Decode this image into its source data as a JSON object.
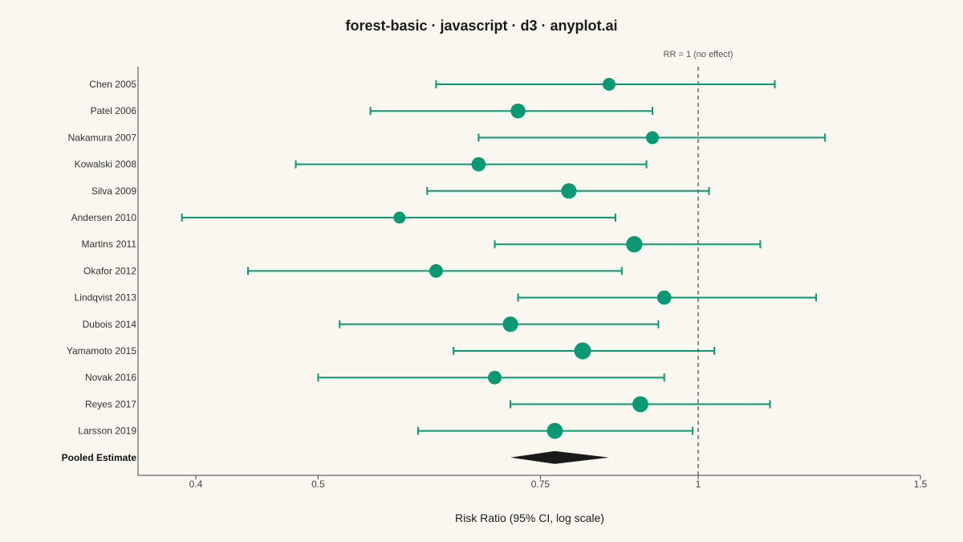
{
  "chart_data": {
    "type": "forest",
    "title": "forest-basic · javascript · d3 · anyplot.ai",
    "xlabel": "Risk Ratio (95% CI, log scale)",
    "x_scale": "log",
    "xlim": [
      0.36,
      1.5
    ],
    "ticks": [
      {
        "value": 0.4,
        "label": "0.4"
      },
      {
        "value": 0.5,
        "label": "0.5"
      },
      {
        "value": 0.75,
        "label": "0.75"
      },
      {
        "value": 1,
        "label": "1"
      },
      {
        "value": 1.5,
        "label": "1.5"
      }
    ],
    "reference": {
      "value": 1,
      "label": "RR = 1 (no effect)"
    },
    "studies": [
      {
        "name": "Chen 2005",
        "rr": 0.85,
        "lo": 0.62,
        "hi": 1.15,
        "weight": 3
      },
      {
        "name": "Patel 2006",
        "rr": 0.72,
        "lo": 0.55,
        "hi": 0.92,
        "weight": 6
      },
      {
        "name": "Nakamura 2007",
        "rr": 0.92,
        "lo": 0.67,
        "hi": 1.26,
        "weight": 3
      },
      {
        "name": "Kowalski 2008",
        "rr": 0.67,
        "lo": 0.48,
        "hi": 0.91,
        "weight": 5
      },
      {
        "name": "Silva 2009",
        "rr": 0.79,
        "lo": 0.61,
        "hi": 1.02,
        "weight": 7
      },
      {
        "name": "Andersen 2010",
        "rr": 0.58,
        "lo": 0.39,
        "hi": 0.86,
        "weight": 2
      },
      {
        "name": "Martins 2011",
        "rr": 0.89,
        "lo": 0.69,
        "hi": 1.12,
        "weight": 9
      },
      {
        "name": "Okafor 2012",
        "rr": 0.62,
        "lo": 0.44,
        "hi": 0.87,
        "weight": 4
      },
      {
        "name": "Lindqvist 2013",
        "rr": 0.94,
        "lo": 0.72,
        "hi": 1.24,
        "weight": 5
      },
      {
        "name": "Dubois 2014",
        "rr": 0.71,
        "lo": 0.52,
        "hi": 0.93,
        "weight": 7
      },
      {
        "name": "Yamamoto 2015",
        "rr": 0.81,
        "lo": 0.64,
        "hi": 1.03,
        "weight": 10
      },
      {
        "name": "Novak 2016",
        "rr": 0.69,
        "lo": 0.5,
        "hi": 0.94,
        "weight": 4
      },
      {
        "name": "Reyes 2017",
        "rr": 0.9,
        "lo": 0.71,
        "hi": 1.14,
        "weight": 8
      },
      {
        "name": "Larsson 2019",
        "rr": 0.77,
        "lo": 0.6,
        "hi": 0.99,
        "weight": 8
      }
    ],
    "pooled": {
      "name": "Pooled Estimate",
      "rr": 0.77,
      "lo": 0.71,
      "hi": 0.85
    },
    "colors": {
      "study": "#0a9972",
      "pooled": "#1a1a1a",
      "reference": "#555555",
      "axis": "#444444"
    }
  }
}
